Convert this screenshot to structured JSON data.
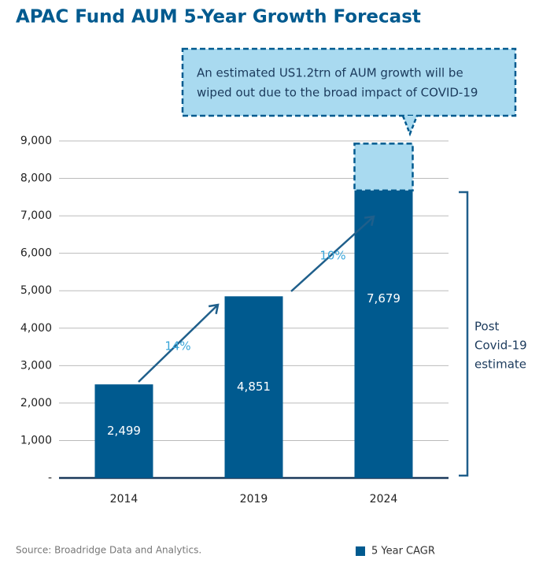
{
  "chart_data": {
    "type": "bar",
    "title": "APAC Fund AUM 5-Year Growth Forecast",
    "categories": [
      "2014",
      "2019",
      "2024"
    ],
    "series": [
      {
        "name": "5 Year CAGR",
        "color": "#005a8f",
        "values": [
          2499,
          4851,
          7679
        ],
        "value_labels": [
          "2,499",
          "4,851",
          "7,679"
        ]
      }
    ],
    "lost_values": [
      null,
      null,
      1250
    ],
    "lost_color": "#a9daf0",
    "ylim": [
      0,
      9000
    ],
    "yticks": [
      {
        "value": 0,
        "label": "-"
      },
      {
        "value": 1000,
        "label": "1,000"
      },
      {
        "value": 2000,
        "label": "2,000"
      },
      {
        "value": 3000,
        "label": "3,000"
      },
      {
        "value": 4000,
        "label": "4,000"
      },
      {
        "value": 5000,
        "label": "5,000"
      },
      {
        "value": 6000,
        "label": "6,000"
      },
      {
        "value": 7000,
        "label": "7,000"
      },
      {
        "value": 8000,
        "label": "8,000"
      },
      {
        "value": 9000,
        "label": "9,000"
      }
    ],
    "grid": true,
    "growth_labels": [
      "14%",
      "10%"
    ],
    "callout": [
      "An estimated US1.2trn of AUM growth will be",
      "wiped out due to the broad impact of COVID-19"
    ],
    "bracket_label": [
      "Post",
      "Covid-19",
      "estimate"
    ],
    "source": "Source: Broadridge Data and Analytics."
  }
}
